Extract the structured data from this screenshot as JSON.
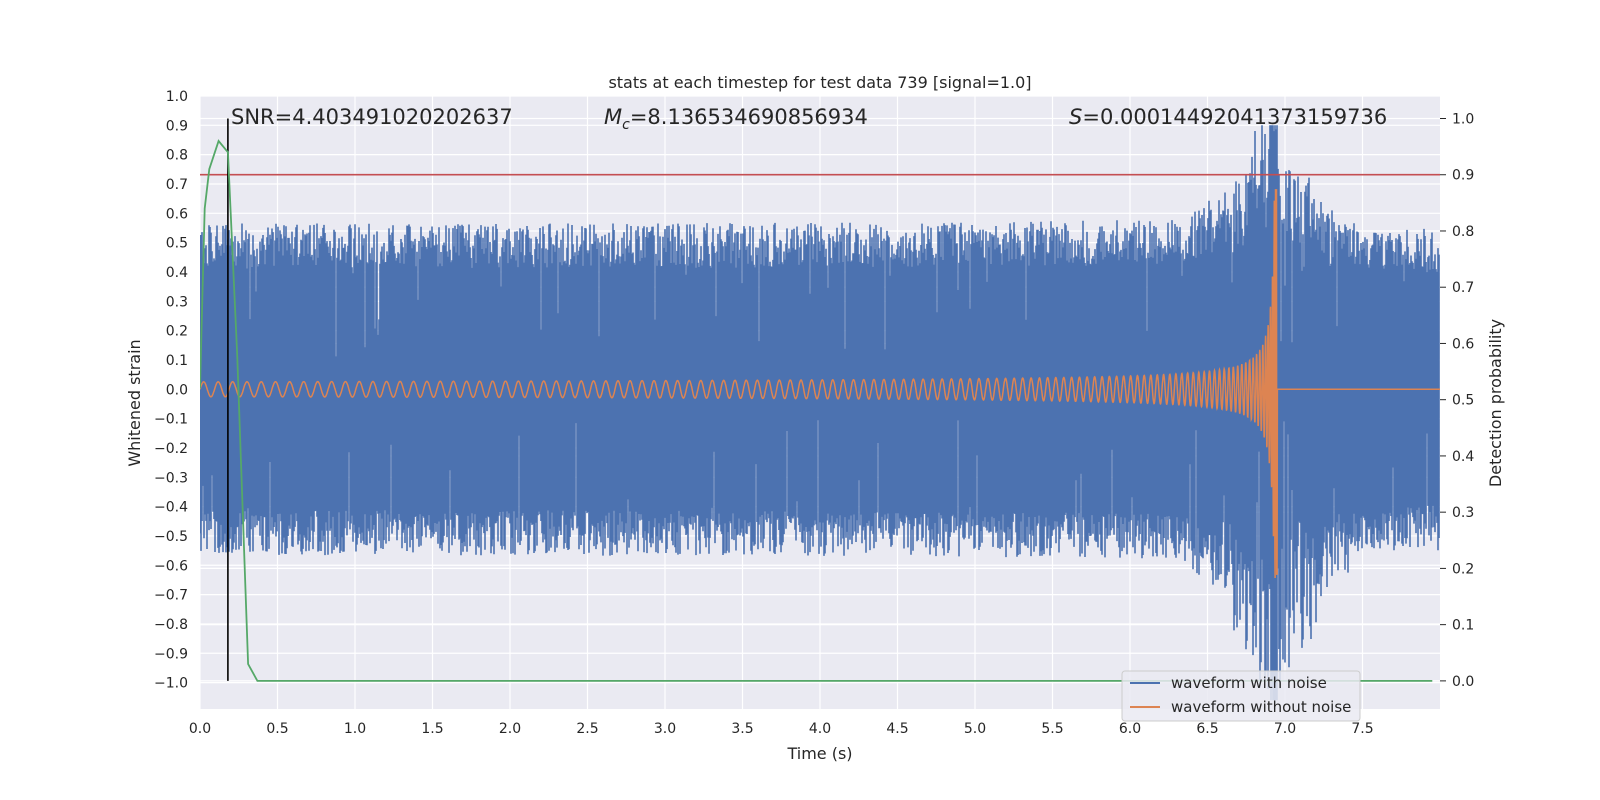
{
  "chart_data": {
    "type": "line",
    "title": "stats at each timestep for test data 739 [signal=1.0]",
    "xlabel": "Time (s)",
    "ylabel": "Whitened strain",
    "y2label": "Detection probability",
    "xlim": [
      0.0,
      8.0
    ],
    "ylim": [
      -1.09,
      1.0
    ],
    "y2lim": [
      -0.05,
      1.04
    ],
    "xticks": [
      "0.0",
      "0.5",
      "1.0",
      "1.5",
      "2.0",
      "2.5",
      "3.0",
      "3.5",
      "4.0",
      "4.5",
      "5.0",
      "5.5",
      "6.0",
      "6.5",
      "7.0",
      "7.5"
    ],
    "yticks": [
      "1.0",
      "0.9",
      "0.8",
      "0.7",
      "0.6",
      "0.5",
      "0.4",
      "0.3",
      "0.2",
      "0.1",
      "0.0",
      "-0.1",
      "-0.2",
      "-0.3",
      "-0.4",
      "-0.5",
      "-0.6",
      "-0.7",
      "-0.8",
      "-0.9",
      "-1.0"
    ],
    "y2ticks": [
      "1.0",
      "0.9",
      "0.8",
      "0.7",
      "0.6",
      "0.5",
      "0.4",
      "0.3",
      "0.2",
      "0.1",
      "0.0"
    ],
    "annotations": {
      "snr": "SNR=4.403491020202637",
      "mc_label": "M",
      "mc_sub": "c",
      "mc_value": "=8.136534690856934",
      "s_label": "S",
      "s_value": "=0.00014492041373159736"
    },
    "series": [
      {
        "name": "waveform with noise",
        "color": "#4c72b0",
        "noise_envelope": {
          "upper_typical": 0.55,
          "lower_typical": -0.55,
          "upper_peak": 0.9,
          "lower_peak": -1.06,
          "peak_time": 6.95
        }
      },
      {
        "name": "waveform without noise",
        "color": "#dd8452",
        "chirp": {
          "start_amplitude": 0.025,
          "merger_time": 6.95,
          "peak_amplitude": 0.68,
          "trough_amplitude": -0.63,
          "post_merger_value": 0.0
        }
      },
      {
        "name": "detection probability",
        "color": "#55a868",
        "axis": "right",
        "x": [
          0.0,
          0.03,
          0.06,
          0.12,
          0.18,
          0.24,
          0.31,
          0.37,
          7.95
        ],
        "y": [
          0.52,
          0.84,
          0.91,
          0.96,
          0.94,
          0.58,
          0.03,
          0.0,
          0.0
        ]
      }
    ],
    "threshold": {
      "value": 0.9,
      "axis": "right",
      "color": "#c44e52"
    },
    "vline": {
      "x": 0.18,
      "color": "#000000",
      "axis": "right",
      "from": 0.0,
      "to": 1.0
    },
    "legend": {
      "placement": "lower-right",
      "entries": [
        "waveform with noise",
        "waveform without noise"
      ]
    }
  }
}
